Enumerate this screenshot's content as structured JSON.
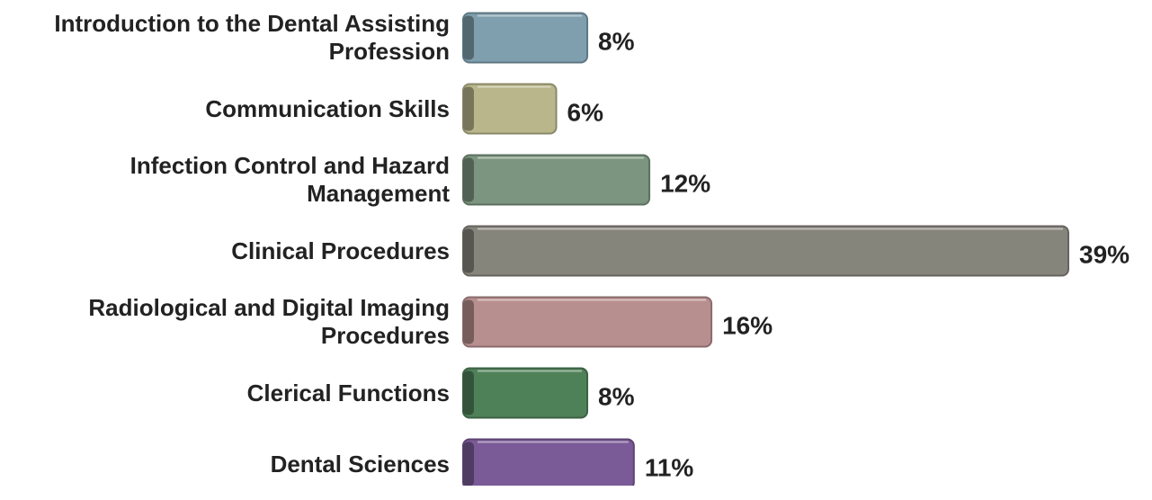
{
  "chart_data": {
    "type": "bar",
    "orientation": "horizontal",
    "categories": [
      "Introduction to the Dental Assisting Profession",
      "Communication Skills",
      "Infection Control and Hazard Management",
      "Clinical Procedures",
      "Radiological and Digital Imaging Procedures",
      "Clerical Functions",
      "Dental Sciences"
    ],
    "values": [
      8,
      6,
      12,
      39,
      16,
      8,
      11
    ],
    "value_labels": [
      "8%",
      "6%",
      "12%",
      "39%",
      "16%",
      "8%",
      "11%"
    ],
    "colors": [
      "#7f9fae",
      "#b8b68a",
      "#7c9580",
      "#86857c",
      "#b88f8f",
      "#4f8159",
      "#7b5a98"
    ]
  }
}
